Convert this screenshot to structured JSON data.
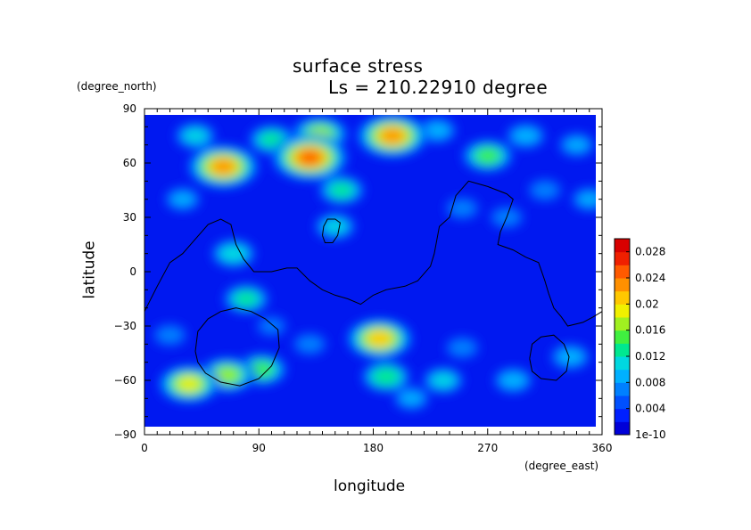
{
  "chart_data": {
    "type": "heatmap",
    "title": "surface stress",
    "subtitle": "Ls = 210.22910 degree",
    "xlabel": "longitude",
    "ylabel": "latitude",
    "x_unit": "(degree_east)",
    "y_unit": "(degree_north)",
    "xlim": [
      0,
      360
    ],
    "ylim": [
      -90,
      90
    ],
    "x_ticks": [
      "0",
      "90",
      "180",
      "270",
      "360"
    ],
    "y_ticks": [
      "90",
      "60",
      "30",
      "0",
      "−30",
      "−60",
      "−90"
    ],
    "x_tick_values": [
      0,
      90,
      180,
      270,
      360
    ],
    "y_tick_values": [
      90,
      60,
      30,
      0,
      -30,
      -60,
      -90
    ],
    "colorbar": {
      "labels": [
        "0.028",
        "0.024",
        "0.02",
        "0.016",
        "0.012",
        "0.008",
        "0.004",
        "1e-10"
      ],
      "values": [
        0.028,
        0.024,
        0.02,
        0.016,
        0.012,
        0.008,
        0.004,
        0
      ],
      "range": [
        0,
        0.03
      ],
      "colors": [
        "#0000d8",
        "#0020ff",
        "#0050ff",
        "#0080ff",
        "#00b0ff",
        "#00d8e0",
        "#00e890",
        "#40f040",
        "#a0f020",
        "#f0f000",
        "#ffc800",
        "#ff9000",
        "#ff5a00",
        "#f02000",
        "#d80000"
      ]
    },
    "data_extent": {
      "lat": [
        -85,
        85
      ]
    },
    "hotspots": [
      {
        "lon": 130,
        "lat": 63,
        "value": 0.024
      },
      {
        "lon": 62,
        "lat": 58,
        "value": 0.022
      },
      {
        "lon": 195,
        "lat": 75,
        "value": 0.022
      },
      {
        "lon": 138,
        "lat": 76,
        "value": 0.016
      },
      {
        "lon": 185,
        "lat": -37,
        "value": 0.02
      },
      {
        "lon": 35,
        "lat": -62,
        "value": 0.018
      },
      {
        "lon": 65,
        "lat": -57,
        "value": 0.016
      },
      {
        "lon": 92,
        "lat": -54,
        "value": 0.014
      },
      {
        "lon": 270,
        "lat": 64,
        "value": 0.014
      },
      {
        "lon": 155,
        "lat": 45,
        "value": 0.012
      },
      {
        "lon": 150,
        "lat": 25,
        "value": 0.01
      },
      {
        "lon": 70,
        "lat": 10,
        "value": 0.011
      },
      {
        "lon": 80,
        "lat": -15,
        "value": 0.012
      },
      {
        "lon": 190,
        "lat": -58,
        "value": 0.013
      },
      {
        "lon": 235,
        "lat": -60,
        "value": 0.01
      },
      {
        "lon": 290,
        "lat": -60,
        "value": 0.009
      },
      {
        "lon": 335,
        "lat": -47,
        "value": 0.009
      },
      {
        "lon": 100,
        "lat": 73,
        "value": 0.012
      },
      {
        "lon": 30,
        "lat": 40,
        "value": 0.008
      },
      {
        "lon": 350,
        "lat": 40,
        "value": 0.008
      },
      {
        "lon": 250,
        "lat": 35,
        "value": 0.007
      },
      {
        "lon": 285,
        "lat": 30,
        "value": 0.007
      },
      {
        "lon": 20,
        "lat": -35,
        "value": 0.007
      },
      {
        "lon": 250,
        "lat": -42,
        "value": 0.007
      },
      {
        "lon": 300,
        "lat": 75,
        "value": 0.009
      },
      {
        "lon": 40,
        "lat": 75,
        "value": 0.01
      },
      {
        "lon": 230,
        "lat": 78,
        "value": 0.009
      },
      {
        "lon": 315,
        "lat": 45,
        "value": 0.007
      },
      {
        "lon": 130,
        "lat": -40,
        "value": 0.007
      },
      {
        "lon": 210,
        "lat": -70,
        "value": 0.008
      },
      {
        "lon": 100,
        "lat": -30,
        "value": 0.006
      },
      {
        "lon": 340,
        "lat": 70,
        "value": 0.008
      }
    ],
    "contours": [
      {
        "name": "coastline",
        "points": [
          [
            0,
            -22
          ],
          [
            10,
            -8
          ],
          [
            20,
            5
          ],
          [
            30,
            10
          ],
          [
            40,
            18
          ],
          [
            50,
            26
          ],
          [
            60,
            29
          ],
          [
            68,
            26
          ],
          [
            72,
            15
          ],
          [
            78,
            7
          ],
          [
            86,
            0
          ],
          [
            100,
            0
          ],
          [
            112,
            2
          ],
          [
            120,
            2
          ],
          [
            130,
            -5
          ],
          [
            140,
            -10
          ],
          [
            150,
            -13
          ],
          [
            160,
            -15
          ],
          [
            170,
            -18
          ],
          [
            180,
            -13
          ],
          [
            190,
            -10
          ],
          [
            205,
            -8
          ],
          [
            215,
            -5
          ],
          [
            225,
            3
          ],
          [
            228,
            10
          ],
          [
            232,
            25
          ],
          [
            240,
            30
          ],
          [
            245,
            42
          ],
          [
            255,
            50
          ],
          [
            270,
            47
          ],
          [
            285,
            43
          ],
          [
            290,
            40
          ],
          [
            285,
            30
          ],
          [
            280,
            22
          ],
          [
            278,
            15
          ],
          [
            290,
            12
          ],
          [
            300,
            8
          ],
          [
            310,
            5
          ],
          [
            315,
            -5
          ],
          [
            318,
            -12
          ],
          [
            322,
            -20
          ],
          [
            328,
            -25
          ],
          [
            333,
            -30
          ],
          [
            345,
            -28
          ],
          [
            353,
            -25
          ],
          [
            360,
            -22
          ]
        ]
      },
      {
        "name": "island",
        "points": [
          [
            140,
            20
          ],
          [
            142,
            16
          ],
          [
            148,
            16
          ],
          [
            152,
            20
          ],
          [
            154,
            27
          ],
          [
            150,
            29
          ],
          [
            144,
            29
          ],
          [
            141,
            25
          ],
          [
            140,
            20
          ]
        ]
      },
      {
        "name": "crater-west",
        "points": [
          [
            40,
            -44
          ],
          [
            42,
            -33
          ],
          [
            50,
            -26
          ],
          [
            60,
            -22
          ],
          [
            72,
            -20
          ],
          [
            84,
            -22
          ],
          [
            95,
            -26
          ],
          [
            105,
            -32
          ],
          [
            106,
            -42
          ],
          [
            100,
            -52
          ],
          [
            90,
            -59
          ],
          [
            75,
            -63
          ],
          [
            60,
            -61
          ],
          [
            48,
            -56
          ],
          [
            42,
            -50
          ],
          [
            40,
            -44
          ]
        ]
      },
      {
        "name": "crater-east",
        "points": [
          [
            303,
            -48
          ],
          [
            305,
            -40
          ],
          [
            312,
            -36
          ],
          [
            322,
            -35
          ],
          [
            330,
            -40
          ],
          [
            334,
            -47
          ],
          [
            332,
            -55
          ],
          [
            324,
            -60
          ],
          [
            312,
            -59
          ],
          [
            305,
            -55
          ],
          [
            303,
            -48
          ]
        ]
      }
    ]
  }
}
